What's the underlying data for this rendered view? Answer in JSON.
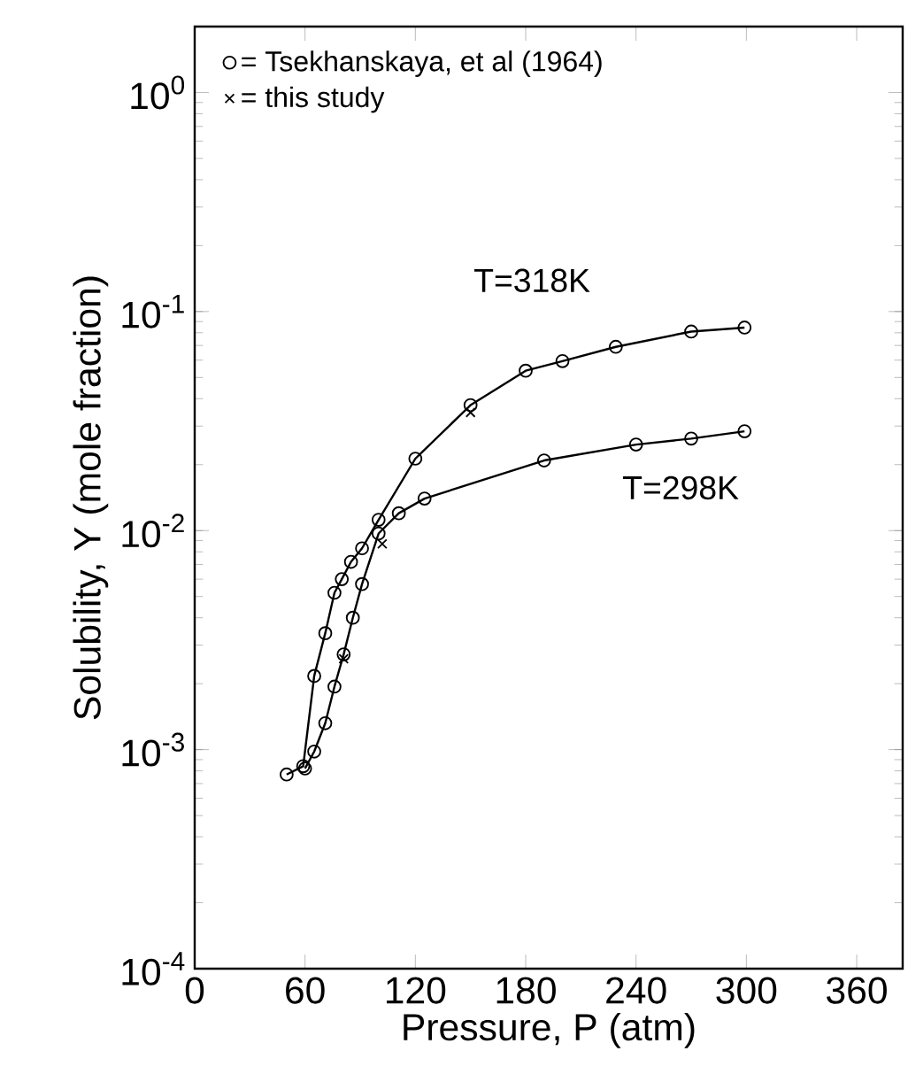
{
  "chart_data": {
    "type": "line",
    "xlabel": "Pressure, P (atm)",
    "ylabel": "Solubility, Y (mole fraction)",
    "log": "y",
    "xlim": [
      0,
      385
    ],
    "xticks": [
      0,
      60,
      120,
      180,
      240,
      300,
      360
    ],
    "ylim": [
      0.0001,
      2
    ],
    "yticks": [
      {
        "value": 0.0001,
        "label": "10$^{-4}$"
      },
      {
        "value": 0.001,
        "label": "10$^{-3}$"
      },
      {
        "value": 0.01,
        "label": "10$^{-2}$"
      },
      {
        "value": 0.1,
        "label": "10$^{-1}$"
      },
      {
        "value": 1,
        "label": "10$^{0}$"
      }
    ],
    "grid": false,
    "legend": "top left",
    "series": [
      {
        "name": "= Tsekhanskaya, et al (1964)",
        "color": "#000000",
        "marker": "circle",
        "line_style": "solid",
        "x": [
          50,
          59,
          65,
          71,
          76,
          80,
          85,
          91,
          100,
          120,
          150,
          180,
          200,
          229,
          270,
          299
        ],
        "values": [
          0.00077,
          0.00084,
          0.00217,
          0.0034,
          0.0052,
          0.006,
          0.0072,
          0.0083,
          0.0112,
          0.0213,
          0.0374,
          0.0537,
          0.0594,
          0.069,
          0.081,
          0.0845
        ]
      },
      {
        "color": "#000000",
        "marker": "circle",
        "line_style": "solid",
        "x": [
          60,
          65,
          71,
          76,
          81,
          86,
          91,
          100,
          111,
          125,
          190,
          240,
          270,
          299
        ],
        "values": [
          0.00082,
          0.00098,
          0.00132,
          0.00194,
          0.00272,
          0.004,
          0.0057,
          0.0097,
          0.012,
          0.014,
          0.0209,
          0.0247,
          0.0263,
          0.0284
        ]
      },
      {
        "name": "= this study",
        "type": "scatter",
        "color": "#000000",
        "marker": "cross",
        "x": [
          81,
          102,
          150
        ],
        "values": [
          0.0026,
          0.0087,
          0.0346
        ]
      }
    ],
    "annotations": [
      "T=318K",
      "T=298K"
    ]
  }
}
